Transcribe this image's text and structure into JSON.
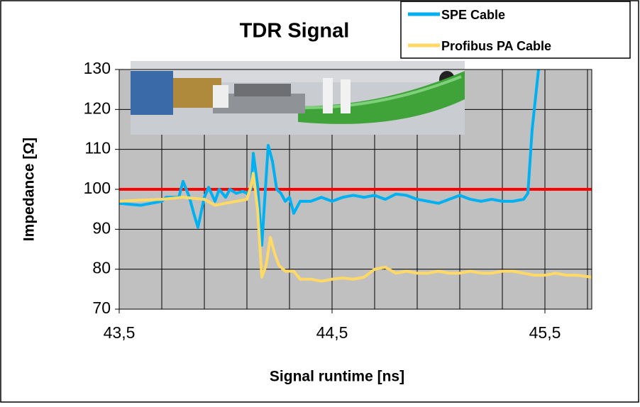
{
  "chart_data": {
    "type": "line",
    "title": "TDR Signal",
    "x_label": "Signal runtime [ns]",
    "y_label": "Impedance [Ω]",
    "xlim": [
      43.5,
      45.72
    ],
    "ylim": [
      70,
      130
    ],
    "xticks": [
      {
        "value": 43.5,
        "label": "43,5"
      },
      {
        "value": 44.5,
        "label": "44,5"
      },
      {
        "value": 45.5,
        "label": "45,5"
      }
    ],
    "xgrid": [
      43.7,
      43.9,
      44.1,
      44.3,
      44.5,
      44.7,
      44.9,
      45.1,
      45.3,
      45.5,
      45.7
    ],
    "yticks": [
      70,
      80,
      90,
      100,
      110,
      120,
      130
    ],
    "grid": true,
    "reference_line": {
      "value": 100,
      "color": "#ff0000"
    },
    "legend": "top-right",
    "series": [
      {
        "name": "SPE Cable",
        "color": "#00b0f0",
        "x": [
          43.5,
          43.6,
          43.7,
          43.72,
          43.78,
          43.8,
          43.83,
          43.85,
          43.87,
          43.9,
          43.92,
          43.95,
          43.97,
          44.0,
          44.02,
          44.05,
          44.08,
          44.1,
          44.12,
          44.13,
          44.15,
          44.17,
          44.2,
          44.22,
          44.24,
          44.26,
          44.28,
          44.3,
          44.32,
          44.35,
          44.4,
          44.45,
          44.5,
          44.55,
          44.6,
          44.65,
          44.7,
          44.75,
          44.8,
          44.85,
          44.9,
          44.95,
          45.0,
          45.05,
          45.1,
          45.15,
          45.2,
          45.25,
          45.3,
          45.35,
          45.4,
          45.42,
          45.44,
          45.47
        ],
        "values": [
          96.5,
          96,
          97,
          98,
          98,
          102,
          98,
          94,
          90.5,
          98,
          100.5,
          97,
          100,
          98,
          100,
          99,
          99.5,
          99,
          100,
          109,
          101,
          86,
          111,
          107,
          100,
          99,
          97,
          98,
          94,
          97,
          97,
          98,
          97,
          98,
          98.5,
          98,
          98.5,
          97.5,
          98.8,
          98.5,
          97.5,
          97,
          96.5,
          97.5,
          98.5,
          97.5,
          97,
          97.5,
          97,
          97,
          97.5,
          99,
          115,
          130
        ]
      },
      {
        "name": "Profibus PA Cable",
        "color": "#ffd966",
        "x": [
          43.5,
          43.6,
          43.7,
          43.8,
          43.9,
          43.95,
          44.0,
          44.05,
          44.1,
          44.12,
          44.13,
          44.15,
          44.17,
          44.19,
          44.21,
          44.23,
          44.25,
          44.28,
          44.32,
          44.35,
          44.4,
          44.45,
          44.5,
          44.55,
          44.6,
          44.65,
          44.7,
          44.75,
          44.8,
          44.85,
          44.9,
          44.95,
          45.0,
          45.05,
          45.1,
          45.15,
          45.2,
          45.25,
          45.3,
          45.35,
          45.4,
          45.45,
          45.5,
          45.55,
          45.6,
          45.65,
          45.72
        ],
        "values": [
          97,
          97.3,
          97.5,
          98,
          97.5,
          96,
          96.5,
          97,
          97.5,
          101,
          104,
          95,
          78,
          81,
          88,
          84,
          81,
          79.5,
          79.5,
          77.5,
          77.5,
          77,
          77.5,
          77.8,
          77.5,
          78,
          80,
          80.5,
          79,
          79.5,
          79,
          79,
          79.5,
          79,
          79,
          79.5,
          79,
          79,
          79.5,
          79.5,
          79,
          78.5,
          78.5,
          79,
          78.5,
          78.5,
          78
        ]
      }
    ]
  }
}
